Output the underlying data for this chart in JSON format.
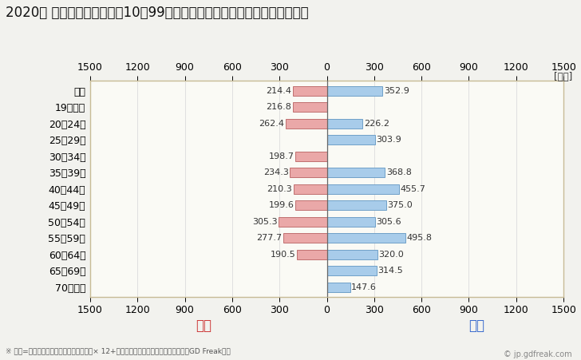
{
  "title": "2020年 民間企業（従業者数10～99人）フルタイム労働者の男女別平均年収",
  "unit_label": "[万円]",
  "categories": [
    "全体",
    "19歳以下",
    "20～24歳",
    "25～29歳",
    "30～34歳",
    "35～39歳",
    "40～44歳",
    "45～49歳",
    "50～54歳",
    "55～59歳",
    "60～64歳",
    "65～69歳",
    "70歳以上"
  ],
  "female_values": [
    214.4,
    216.8,
    262.4,
    0,
    198.7,
    234.3,
    210.3,
    199.6,
    305.3,
    277.7,
    190.5,
    0,
    0
  ],
  "male_values": [
    352.9,
    0,
    226.2,
    303.9,
    0,
    368.8,
    455.7,
    375.0,
    305.6,
    495.8,
    320.0,
    314.5,
    147.6
  ],
  "female_color": "#EAA8A8",
  "male_color": "#A8CCEA",
  "female_edge_color": "#C07070",
  "male_edge_color": "#70A0C8",
  "female_label": "女性",
  "male_label": "男性",
  "female_label_color": "#CC3333",
  "male_label_color": "#3366CC",
  "xlim": [
    -1500,
    1500
  ],
  "xticks": [
    -1500,
    -1200,
    -900,
    -600,
    -300,
    0,
    300,
    600,
    900,
    1200,
    1500
  ],
  "xtick_labels": [
    "1500",
    "1200",
    "900",
    "600",
    "300",
    "0",
    "300",
    "600",
    "900",
    "1200",
    "1500"
  ],
  "background_color": "#F2F2EE",
  "plot_bg_color": "#FAFAF5",
  "border_color": "#C8BB96",
  "grid_color": "#E0E0E0",
  "title_fontsize": 12,
  "tick_fontsize": 9,
  "bar_fontsize": 8,
  "legend_fontsize": 12,
  "footnote": "※ 年収=「きまって支給する現金給与額」× 12+「年間賞与その他特別給与額」としてGD Freak推計",
  "copyright": "© jp.gdfreak.com"
}
